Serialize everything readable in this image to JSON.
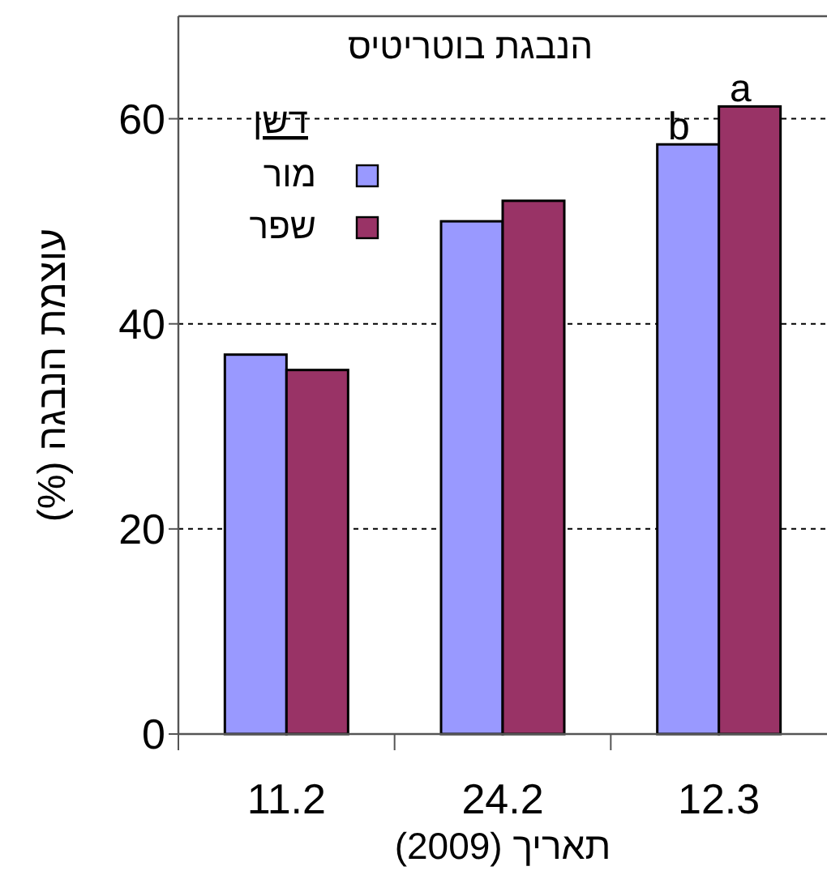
{
  "chart_data": {
    "type": "bar",
    "title": "הנבגת בוטריטיס",
    "xlabel": "תאריך (2009)",
    "ylabel": "עוצמת הנבגה (%)",
    "legend_title": "דשן",
    "categories": [
      "11.2",
      "24.2",
      "12.3"
    ],
    "series": [
      {
        "name": "מור",
        "color": "#9999ff",
        "values": [
          37,
          50,
          57.5
        ]
      },
      {
        "name": "שפר",
        "color": "#993366",
        "values": [
          35.5,
          52,
          61.2
        ]
      }
    ],
    "ylim": [
      0,
      70
    ],
    "yticks": [
      0,
      20,
      40,
      60
    ],
    "grid": "y",
    "legend": "top left",
    "annotations": [
      {
        "text": "b",
        "x": "12.3",
        "y": 57.5
      },
      {
        "text": "a",
        "x": "12.3",
        "y": 61.2
      }
    ]
  }
}
